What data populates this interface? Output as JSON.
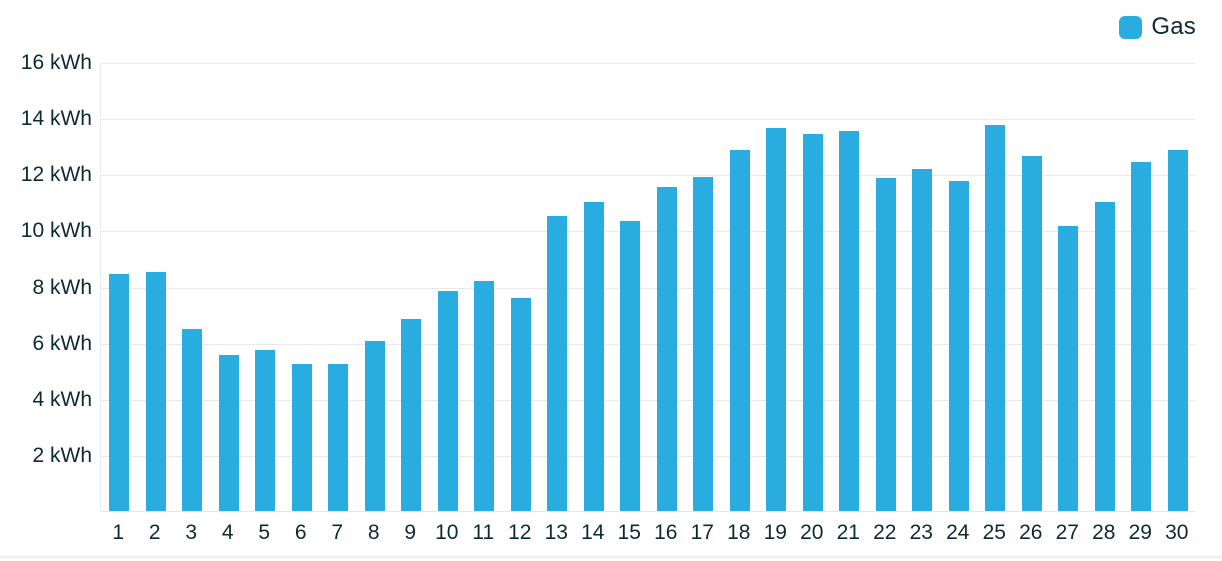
{
  "legend": {
    "label": "Gas",
    "swatch_color": "#29ACE0"
  },
  "colors": {
    "bar": "#29ACE0",
    "text": "#0C2B30",
    "grid": "#E9E9E9",
    "background": "#FFFFFF"
  },
  "chart_data": {
    "type": "bar",
    "title": "",
    "xlabel": "",
    "ylabel": "",
    "unit": "kWh",
    "categories": [
      "1",
      "2",
      "3",
      "4",
      "5",
      "6",
      "7",
      "8",
      "9",
      "10",
      "11",
      "12",
      "13",
      "14",
      "15",
      "16",
      "17",
      "18",
      "19",
      "20",
      "21",
      "22",
      "23",
      "24",
      "25",
      "26",
      "27",
      "28",
      "29",
      "30"
    ],
    "series": [
      {
        "name": "Gas",
        "color": "#29ACE0",
        "values": [
          8.45,
          8.5,
          6.5,
          5.55,
          5.75,
          5.25,
          5.25,
          6.05,
          6.85,
          7.85,
          8.2,
          7.6,
          10.5,
          11.0,
          10.35,
          11.55,
          11.9,
          12.85,
          13.65,
          13.45,
          13.55,
          11.85,
          12.2,
          11.75,
          13.75,
          12.65,
          10.15,
          11.0,
          12.45,
          12.85
        ]
      }
    ],
    "ylim": [
      0,
      16
    ],
    "y_tick_step": 2,
    "y_tick_labels_top_to_bottom": [
      "16 kWh",
      "14 kWh",
      "12 kWh",
      "10 kWh",
      "8 kWh",
      "6 kWh",
      "4 kWh",
      "2 kWh"
    ],
    "grid": true,
    "legend_position": "top-right"
  }
}
